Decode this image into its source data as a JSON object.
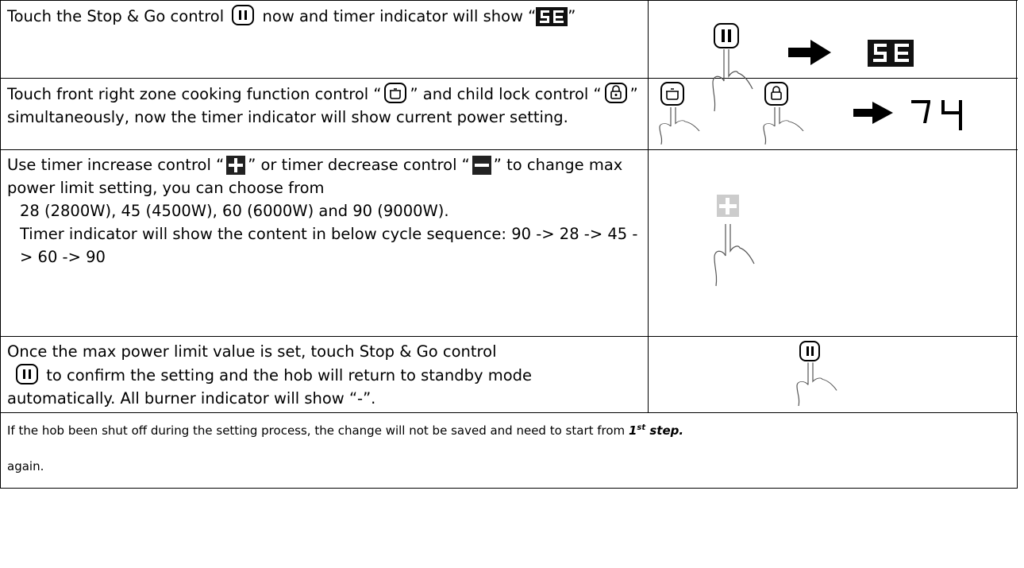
{
  "rows": [
    {
      "parts": [
        "Touch the Stop & Go control",
        "now and timer indicator will show “",
        "”"
      ]
    },
    {
      "parts": [
        "Touch front right zone cooking function control “",
        "” and child lock control “",
        "” simultaneously, now the timer indicator will show current power setting."
      ]
    },
    {
      "parts": [
        "Use timer increase control “",
        "” or timer decrease control “",
        "” to change max power limit setting, you can choose from",
        "28 (2800W), 45 (4500W), 60 (6000W) and 90 (9000W).",
        "Timer indicator will show the content in below cycle sequence: 90 -> 28 -> 45 -> 60 -> 90"
      ]
    },
    {
      "parts": [
        "Once the max power limit value is set, touch Stop & Go control",
        "to confirm the setting and the hob will return to standby mode automatically. All burner indicator will show “-”."
      ]
    }
  ],
  "note": {
    "text": "If the hob been shut off during the setting process, the change will not be saved and need to start from",
    "step_number": "1",
    "step_suffix": "st",
    "step_word": "step.",
    "tail": "again."
  }
}
